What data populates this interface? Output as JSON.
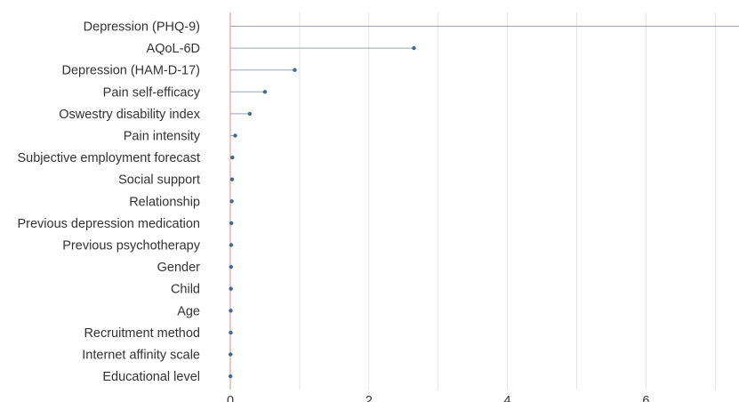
{
  "chart_data": {
    "type": "lollipop",
    "title": "",
    "xlabel": "",
    "ylabel": "",
    "categories": [
      "Depression (PHQ-9)",
      "AQoL-6D",
      "Depression (HAM-D-17)",
      "Pain self-efficacy",
      "Oswestry disability index",
      "Pain intensity",
      "Subjective employment forecast",
      "Social support",
      "Relationship",
      "Previous depression medication",
      "Previous psychotherapy",
      "Gender",
      "Child",
      "Age",
      "Recruitment method",
      "Internet affinity scale",
      "Educational level"
    ],
    "values": [
      7.4,
      2.65,
      0.93,
      0.5,
      0.28,
      0.07,
      0.03,
      0.025,
      0.02,
      0.015,
      0.012,
      0.01,
      0.008,
      0.006,
      0.005,
      0.003,
      0.002
    ],
    "x_ticks": [
      0,
      2,
      4,
      6
    ],
    "xlim": [
      0,
      7.35
    ],
    "grid": true,
    "colors": {
      "stem": "#9aa6b8",
      "dot": "#3d6a96",
      "grid": "#e6e6e6",
      "zero_line": "#d99080"
    }
  }
}
